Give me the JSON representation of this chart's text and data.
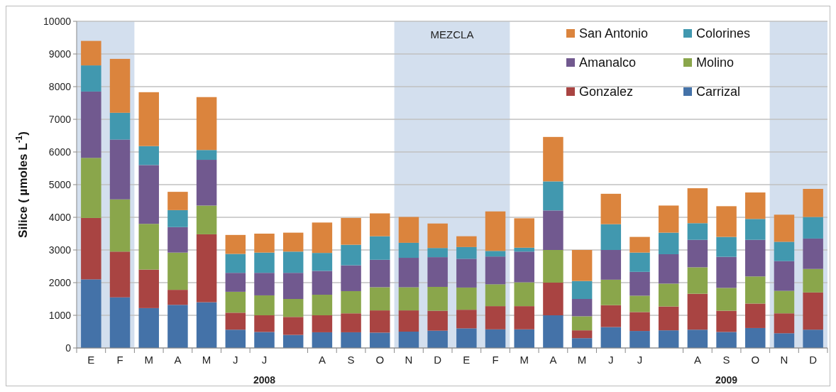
{
  "chart_data": {
    "type": "bar",
    "stacked": true,
    "ylabel": "Silice  ( µmoles L$^{-1}$)",
    "categories": [
      "E",
      "F",
      "M",
      "A",
      "M",
      "J",
      "J",
      null,
      "A",
      "S",
      "O",
      "N",
      "D",
      "E",
      "F",
      "M",
      "A",
      "M",
      "J",
      "J",
      null,
      "A",
      "S",
      "O",
      "N",
      "D"
    ],
    "series": [
      {
        "name": "Carrizal",
        "color": "#4472a8",
        "values": [
          2100,
          1550,
          1220,
          1320,
          1400,
          560,
          490,
          400,
          480,
          480,
          470,
          500,
          530,
          600,
          570,
          570,
          1000,
          300,
          640,
          520,
          540,
          560,
          490,
          610,
          450,
          560
        ]
      },
      {
        "name": "Gonzalez",
        "color": "#a94442",
        "values": [
          1880,
          1400,
          1180,
          460,
          2080,
          520,
          510,
          550,
          520,
          580,
          680,
          650,
          610,
          570,
          710,
          710,
          1000,
          240,
          670,
          580,
          730,
          1100,
          650,
          750,
          610,
          1140
        ]
      },
      {
        "name": "Molino",
        "color": "#8aa64b",
        "values": [
          1840,
          1600,
          1400,
          1140,
          880,
          640,
          610,
          550,
          630,
          680,
          710,
          710,
          730,
          680,
          670,
          730,
          1000,
          430,
          780,
          500,
          700,
          810,
          700,
          830,
          690,
          720
        ]
      },
      {
        "name": "Amanalco",
        "color": "#71598f",
        "values": [
          2030,
          1830,
          1800,
          780,
          1400,
          580,
          690,
          800,
          730,
          790,
          840,
          900,
          910,
          880,
          850,
          940,
          1210,
          530,
          910,
          730,
          900,
          840,
          950,
          1120,
          910,
          930
        ]
      },
      {
        "name": "Colorines",
        "color": "#4198af",
        "values": [
          800,
          820,
          580,
          520,
          300,
          580,
          620,
          650,
          550,
          630,
          720,
          460,
          280,
          360,
          170,
          120,
          890,
          550,
          790,
          590,
          660,
          510,
          610,
          640,
          590,
          660
        ]
      },
      {
        "name": "San Antonio",
        "color": "#db843d",
        "values": [
          750,
          1650,
          1650,
          560,
          1620,
          580,
          580,
          580,
          930,
          820,
          700,
          790,
          750,
          330,
          1210,
          900,
          1360,
          950,
          930,
          480,
          830,
          1070,
          940,
          810,
          830,
          860
        ]
      }
    ],
    "ylim": [
      0,
      10000
    ],
    "yticks": [
      0,
      1000,
      2000,
      3000,
      4000,
      5000,
      6000,
      7000,
      8000,
      9000,
      10000
    ],
    "grid": "y",
    "legend": "top right",
    "bands": [
      {
        "axis": "x",
        "from": "E",
        "to": "F",
        "color": "#d3dfee"
      }
    ],
    "annotations": [
      "2008",
      "2009",
      "MEZCLA"
    ]
  }
}
